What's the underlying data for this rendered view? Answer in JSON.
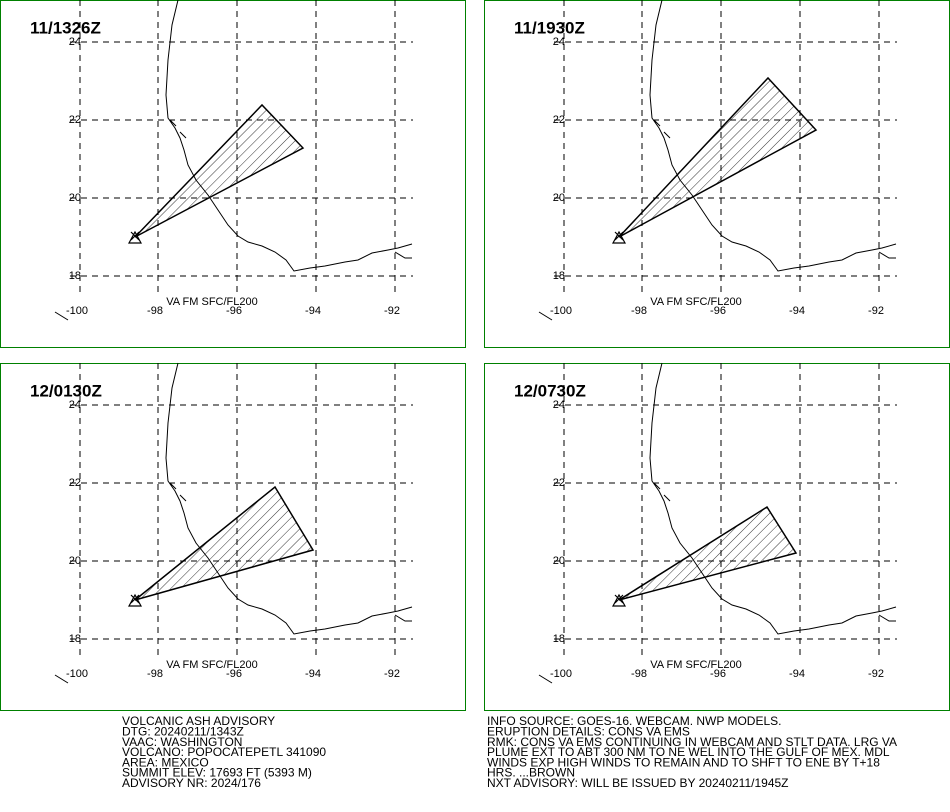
{
  "panels": [
    {
      "time": "11/1326Z",
      "x_labels": [
        "-100",
        "-98",
        "-96",
        "-94",
        "-92"
      ],
      "y_labels": [
        "24",
        "22",
        "20",
        "18"
      ],
      "level": "VA FM SFC/FL200"
    },
    {
      "time": "11/1930Z",
      "x_labels": [
        "-100",
        "-98",
        "-96",
        "-94",
        "-92"
      ],
      "y_labels": [
        "24",
        "22",
        "20",
        "18"
      ],
      "level": "VA FM SFC/FL200"
    },
    {
      "time": "12/0130Z",
      "x_labels": [
        "-100",
        "-98",
        "-96",
        "-94",
        "-92"
      ],
      "y_labels": [
        "24",
        "22",
        "20",
        "18"
      ],
      "level": "VA FM SFC/FL200"
    },
    {
      "time": "12/0730Z",
      "x_labels": [
        "-100",
        "-98",
        "-96",
        "-94",
        "-92"
      ],
      "y_labels": [
        "24",
        "22",
        "20",
        "18"
      ],
      "level": "VA FM SFC/FL200"
    }
  ],
  "advisory_left": [
    "VOLCANIC ASH ADVISORY",
    "DTG: 20240211/1343Z",
    "VAAC: WASHINGTON",
    "VOLCANO: POPOCATEPETL 341090",
    "AREA: MEXICO",
    "SUMMIT ELEV: 17693 FT (5393 M)",
    "ADVISORY NR: 2024/176"
  ],
  "advisory_right": [
    "INFO SOURCE: GOES-16. WEBCAM. NWP MODELS.",
    "ERUPTION DETAILS: CONS VA EMS",
    "RMK: CONS VA EMS CONTINUING IN WEBCAM AND STLT DATA. LRG VA",
    "PLUME EXT TO ABT 300 NM TO NE WEL INTO THE GULF OF MEX. MDL",
    "WINDS EXP HIGH WINDS TO REMAIN AND TO SHFT TO ENE BY T+18",
    "HRS. ...BROWN",
    "NXT ADVISORY: WILL BE ISSUED BY 20240211/1945Z"
  ]
}
